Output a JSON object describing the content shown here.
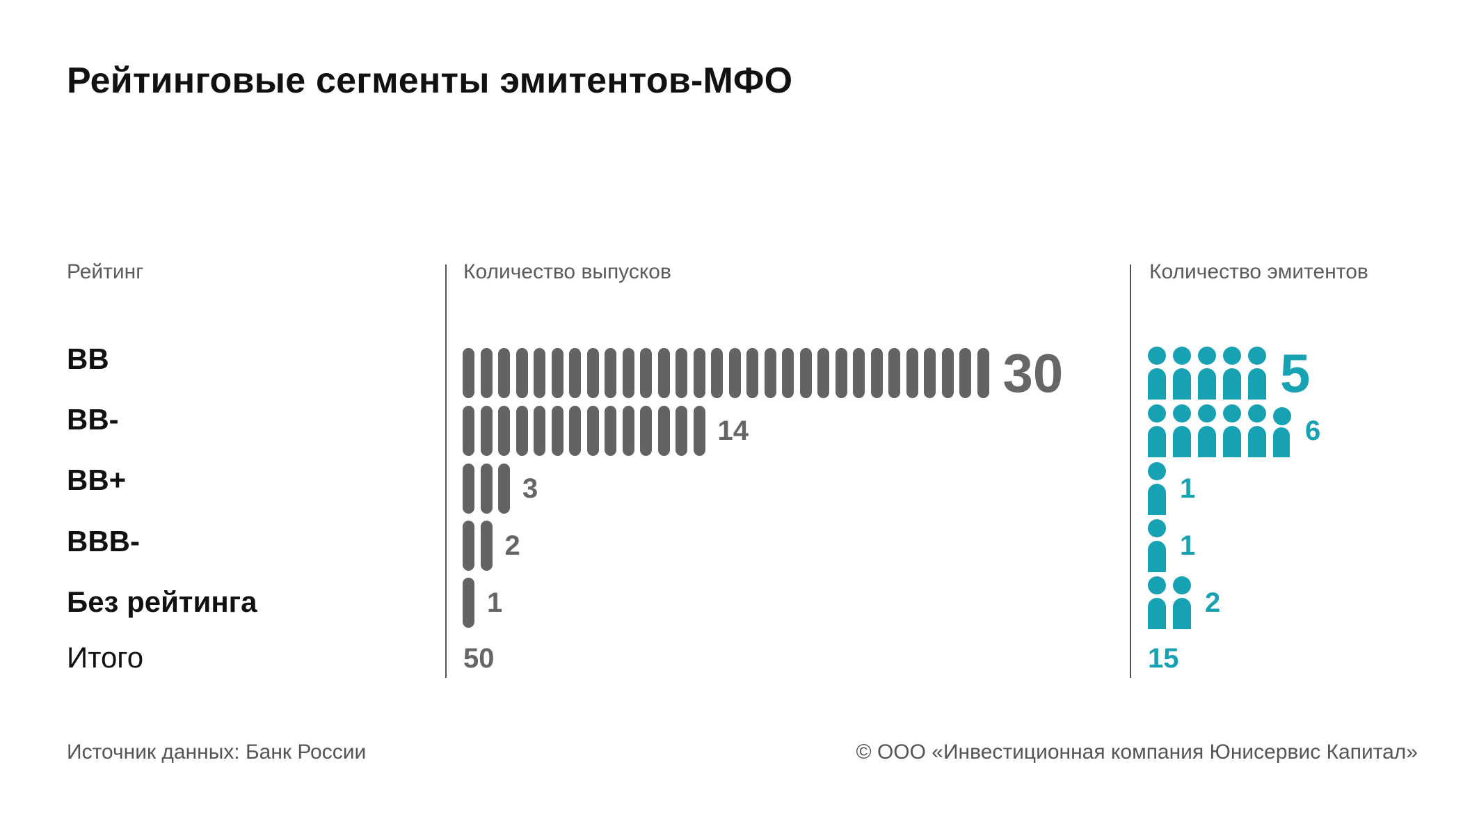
{
  "title": "Рейтинговые сегменты эмитентов-МФО",
  "headers": {
    "rating": "Рейтинг",
    "issues": "Количество выпусков",
    "issuers": "Количество эмитентов"
  },
  "chart_data": {
    "type": "bar",
    "title": "Рейтинговые сегменты эмитентов-МФО",
    "categories": [
      "BB",
      "BB-",
      "BB+",
      "BBB-",
      "Без рейтинга"
    ],
    "series": [
      {
        "name": "Количество выпусков",
        "values": [
          30,
          14,
          3,
          2,
          1
        ],
        "color": "#636363"
      },
      {
        "name": "Количество эмитентов",
        "values": [
          5,
          6,
          1,
          1,
          2
        ],
        "color": "#17a2b4"
      }
    ],
    "total_label": "Итого",
    "totals": {
      "issues": "50",
      "issuers": "15"
    }
  },
  "rows": [
    {
      "label": "BB",
      "issues": "30",
      "issuers": "5"
    },
    {
      "label": "BB-",
      "issues": "14",
      "issuers": "6"
    },
    {
      "label": "BB+",
      "issues": "3",
      "issuers": "1"
    },
    {
      "label": "BBB-",
      "issues": "2",
      "issuers": "1"
    },
    {
      "label": "Без рейтинга",
      "issues": "1",
      "issuers": "2"
    }
  ],
  "total": {
    "label": "Итого",
    "issues": "50",
    "issuers": "15"
  },
  "footer": {
    "source": "Источник данных: Банк России",
    "copyright": "© ООО «Инвестиционная компания Юнисервис Капитал»"
  },
  "colors": {
    "issues_bar": "#636363",
    "issuers_icon": "#17a2b4",
    "text": "#111111"
  }
}
